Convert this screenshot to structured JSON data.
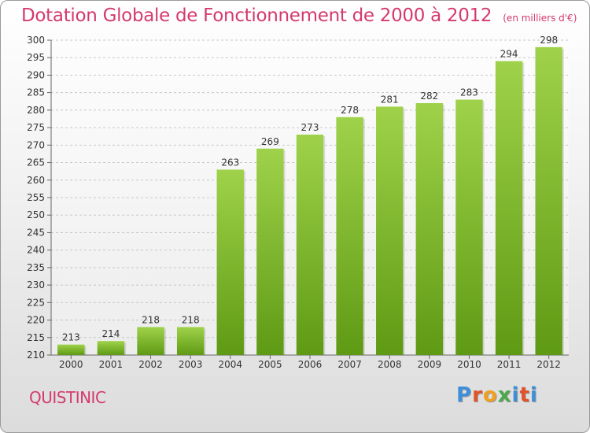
{
  "header": {
    "title": "Dotation Globale de Fonctionnement de 2000 à 2012",
    "subtitle": "(en milliers d'€)"
  },
  "footer": {
    "commune": "QUISTINIC",
    "brand_parts": [
      "P",
      "r",
      "o",
      "x",
      "i",
      "t",
      "i"
    ]
  },
  "colors": {
    "title": "#d43a6e",
    "bar_top": "#9fd24a",
    "bar_bottom": "#5f9a14",
    "grid": "#c8c8c8"
  },
  "chart_data": {
    "type": "bar",
    "title": "Dotation Globale de Fonctionnement de 2000 à 2012",
    "subtitle": "(en milliers d'€)",
    "xlabel": "",
    "ylabel": "",
    "categories": [
      "2000",
      "2001",
      "2002",
      "2003",
      "2004",
      "2005",
      "2006",
      "2007",
      "2008",
      "2009",
      "2010",
      "2011",
      "2012"
    ],
    "values": [
      213,
      214,
      218,
      218,
      263,
      269,
      273,
      278,
      281,
      282,
      283,
      294,
      298
    ],
    "ylim": [
      210,
      300
    ],
    "yticks": [
      210,
      215,
      220,
      225,
      230,
      235,
      240,
      245,
      250,
      255,
      260,
      265,
      270,
      275,
      280,
      285,
      290,
      295,
      300
    ],
    "grid": true,
    "legend": "none"
  }
}
